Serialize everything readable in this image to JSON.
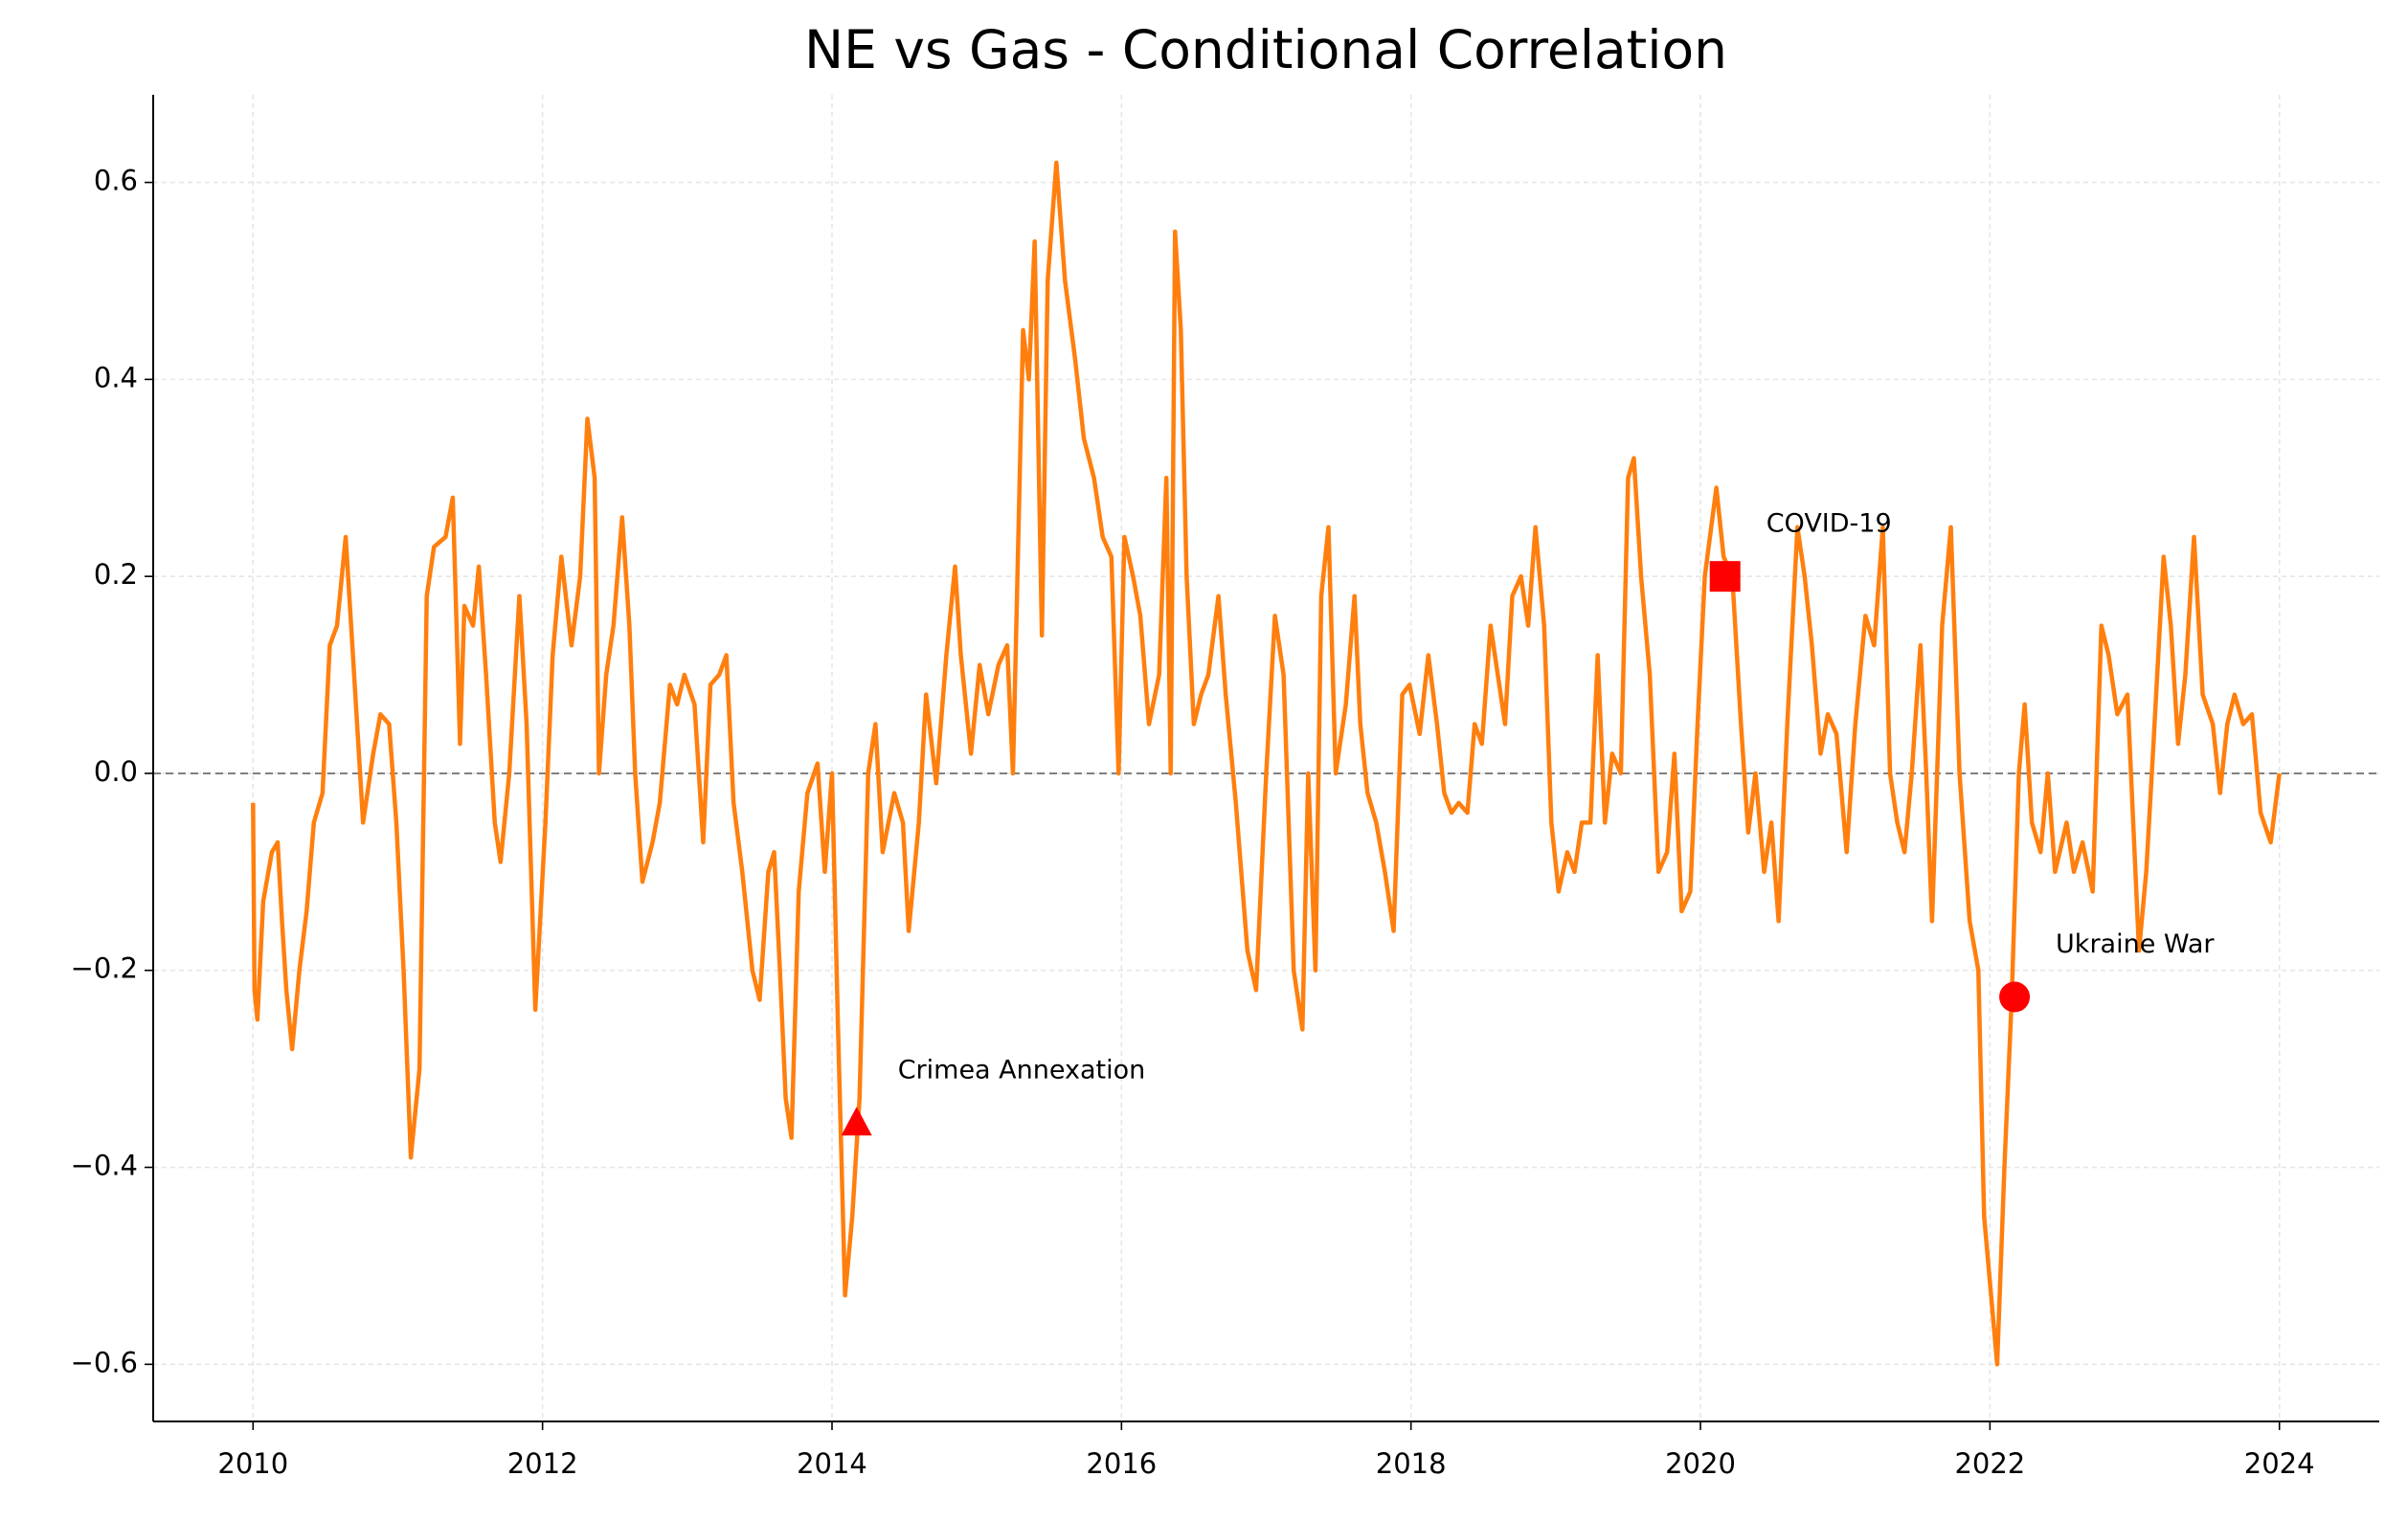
{
  "chart_data": {
    "type": "line",
    "title": "NE vs Gas - Conditional Correlation",
    "color": "#ff7f0e",
    "x": [
      2010.0,
      2010.01,
      2010.03,
      2010.07,
      2010.13,
      2010.17,
      2010.2,
      2010.23,
      2010.27,
      2010.32,
      2010.37,
      2010.42,
      2010.48,
      2010.53,
      2010.58,
      2010.64,
      2010.69,
      2010.76,
      2010.83,
      2010.88,
      2010.94,
      2010.99,
      2011.04,
      2011.09,
      2011.15,
      2011.2,
      2011.25,
      2011.33,
      2011.38,
      2011.43,
      2011.46,
      2011.52,
      2011.56,
      2011.61,
      2011.67,
      2011.71,
      2011.77,
      2011.84,
      2011.89,
      2011.95,
      2012.02,
      2012.07,
      2012.13,
      2012.2,
      2012.26,
      2012.31,
      2012.36,
      2012.39,
      2012.44,
      2012.49,
      2012.55,
      2012.6,
      2012.64,
      2012.69,
      2012.76,
      2012.81,
      2012.88,
      2012.93,
      2012.98,
      2013.05,
      2013.11,
      2013.16,
      2013.22,
      2013.27,
      2013.32,
      2013.38,
      2013.45,
      2013.5,
      2013.56,
      2013.6,
      2013.64,
      2013.68,
      2013.72,
      2013.77,
      2013.83,
      2013.9,
      2013.95,
      2014.0,
      2014.04,
      2014.09,
      2014.14,
      2014.19,
      2014.25,
      2014.3,
      2014.35,
      2014.43,
      2014.49,
      2014.53,
      2014.6,
      2014.65,
      2014.72,
      2014.79,
      2014.85,
      2014.89,
      2014.96,
      2015.02,
      2015.08,
      2015.15,
      2015.21,
      2015.25,
      2015.32,
      2015.36,
      2015.4,
      2015.45,
      2015.49,
      2015.55,
      2015.61,
      2015.68,
      2015.74,
      2015.81,
      2015.87,
      2015.93,
      2015.98,
      2016.02,
      2016.08,
      2016.13,
      2016.19,
      2016.26,
      2016.31,
      2016.34,
      2016.37,
      2016.41,
      2016.45,
      2016.5,
      2016.55,
      2016.6,
      2016.67,
      2016.72,
      2016.79,
      2016.87,
      2016.93,
      2017.0,
      2017.06,
      2017.12,
      2017.19,
      2017.25,
      2017.29,
      2017.34,
      2017.38,
      2017.43,
      2017.48,
      2017.55,
      2017.61,
      2017.65,
      2017.7,
      2017.76,
      2017.82,
      2017.88,
      2017.94,
      2017.99,
      2018.06,
      2018.12,
      2018.18,
      2018.23,
      2018.28,
      2018.33,
      2018.39,
      2018.44,
      2018.49,
      2018.55,
      2018.6,
      2018.65,
      2018.7,
      2018.76,
      2018.81,
      2018.86,
      2018.92,
      2018.97,
      2019.02,
      2019.08,
      2019.13,
      2019.18,
      2019.24,
      2019.29,
      2019.34,
      2019.39,
      2019.45,
      2019.5,
      2019.54,
      2019.59,
      2019.65,
      2019.71,
      2019.77,
      2019.82,
      2019.87,
      2019.93,
      2019.98,
      2020.03,
      2020.11,
      2020.16,
      2020.22,
      2020.28,
      2020.33,
      2020.38,
      2020.44,
      2020.49,
      2020.54,
      2020.6,
      2020.67,
      2020.72,
      2020.77,
      2020.83,
      2020.88,
      2020.94,
      2021.01,
      2021.07,
      2021.14,
      2021.2,
      2021.26,
      2021.31,
      2021.36,
      2021.41,
      2021.46,
      2021.52,
      2021.56,
      2021.6,
      2021.67,
      2021.73,
      2021.79,
      2021.86,
      2021.92,
      2021.96,
      2022.02,
      2022.05,
      2022.1,
      2022.15,
      2022.2,
      2022.24,
      2022.29,
      2022.35,
      2022.4,
      2022.45,
      2022.53,
      2022.58,
      2022.64,
      2022.71,
      2022.77,
      2022.82,
      2022.88,
      2022.95,
      2023.03,
      2023.08,
      2023.13,
      2023.2,
      2023.25,
      2023.3,
      2023.35,
      2023.41,
      2023.47,
      2023.54,
      2023.59,
      2023.64,
      2023.69,
      2023.75,
      2023.81,
      2023.87,
      2023.94,
      2024.0
    ],
    "values": [
      -0.03,
      -0.22,
      -0.25,
      -0.13,
      -0.08,
      -0.07,
      -0.15,
      -0.22,
      -0.28,
      -0.2,
      -0.14,
      -0.05,
      -0.02,
      0.13,
      0.15,
      0.24,
      0.12,
      -0.05,
      0.02,
      0.06,
      0.05,
      -0.05,
      -0.2,
      -0.39,
      -0.3,
      0.18,
      0.23,
      0.24,
      0.28,
      0.03,
      0.17,
      0.15,
      0.21,
      0.1,
      -0.05,
      -0.09,
      0.0,
      0.18,
      0.05,
      -0.24,
      -0.05,
      0.12,
      0.22,
      0.13,
      0.2,
      0.36,
      0.3,
      0.0,
      0.1,
      0.15,
      0.26,
      0.15,
      0.0,
      -0.11,
      -0.07,
      -0.03,
      0.09,
      0.07,
      0.1,
      0.07,
      -0.07,
      0.09,
      0.1,
      0.12,
      -0.03,
      -0.1,
      -0.2,
      -0.23,
      -0.1,
      -0.08,
      -0.2,
      -0.33,
      -0.37,
      -0.12,
      -0.02,
      0.01,
      -0.1,
      0.0,
      -0.25,
      -0.53,
      -0.45,
      -0.33,
      0.0,
      0.05,
      -0.08,
      -0.02,
      -0.05,
      -0.16,
      -0.05,
      0.08,
      -0.01,
      0.12,
      0.21,
      0.12,
      0.02,
      0.11,
      0.06,
      0.11,
      0.13,
      0.0,
      0.45,
      0.4,
      0.54,
      0.14,
      0.5,
      0.62,
      0.5,
      0.42,
      0.34,
      0.3,
      0.24,
      0.22,
      0.0,
      0.24,
      0.2,
      0.16,
      0.05,
      0.1,
      0.3,
      0.0,
      0.55,
      0.45,
      0.2,
      0.05,
      0.08,
      0.1,
      0.18,
      0.08,
      -0.03,
      -0.18,
      -0.22,
      0.0,
      0.16,
      0.1,
      -0.2,
      -0.26,
      0.0,
      -0.2,
      0.18,
      0.25,
      0.0,
      0.07,
      0.18,
      0.05,
      -0.02,
      -0.05,
      -0.1,
      -0.16,
      0.08,
      0.09,
      0.04,
      0.12,
      0.05,
      -0.02,
      -0.04,
      -0.03,
      -0.04,
      0.05,
      0.03,
      0.15,
      0.1,
      0.05,
      0.18,
      0.2,
      0.15,
      0.25,
      0.15,
      -0.05,
      -0.12,
      -0.08,
      -0.1,
      -0.05,
      -0.05,
      0.12,
      -0.05,
      0.02,
      0.0,
      0.3,
      0.32,
      0.2,
      0.1,
      -0.1,
      -0.08,
      0.02,
      -0.14,
      -0.12,
      0.05,
      0.2,
      0.29,
      0.22,
      0.2,
      0.05,
      -0.06,
      0.0,
      -0.1,
      -0.05,
      -0.15,
      0.05,
      0.25,
      0.2,
      0.13,
      0.02,
      0.06,
      0.04,
      -0.08,
      0.05,
      0.16,
      0.13,
      0.25,
      0.0,
      -0.05,
      -0.08,
      0.0,
      0.13,
      0.0,
      -0.15,
      0.15,
      0.25,
      0.0,
      -0.15,
      -0.2,
      -0.45,
      -0.55,
      -0.6,
      -0.4,
      -0.23,
      0.0,
      0.07,
      -0.05,
      -0.08,
      0.0,
      -0.1,
      -0.05,
      -0.1,
      -0.07,
      -0.12,
      0.15,
      0.12,
      0.06,
      0.08,
      -0.18,
      -0.1,
      0.03,
      0.22,
      0.15,
      0.03,
      0.1,
      0.24,
      0.08,
      0.05,
      -0.02,
      0.05,
      0.08,
      0.05,
      0.06,
      -0.04,
      -0.07,
      0.0
    ],
    "xlim": [
      2009.31,
      2024.69
    ],
    "ylim": [
      -0.658,
      0.689
    ],
    "xticks": [
      2010,
      2012,
      2014,
      2016,
      2018,
      2020,
      2022,
      2024
    ],
    "yticks": [
      {
        "value": -0.6,
        "label": "−0.6"
      },
      {
        "value": -0.4,
        "label": "−0.4"
      },
      {
        "value": -0.2,
        "label": "−0.2"
      },
      {
        "value": 0.0,
        "label": "0.0"
      },
      0.2,
      0.4,
      0.6
    ],
    "grid": true,
    "hline": 0,
    "annotations": [
      {
        "text": "Crimea Annexation",
        "x": 2014.17,
        "y": -0.355,
        "marker": "triangle",
        "color": "#ff0000"
      },
      {
        "text": "COVID-19",
        "x": 2020.17,
        "y": 0.2,
        "marker": "square",
        "color": "#ff0000"
      },
      {
        "text": "Ukraine War",
        "x": 2022.17,
        "y": -0.227,
        "marker": "circle",
        "color": "#ff0000"
      }
    ]
  }
}
